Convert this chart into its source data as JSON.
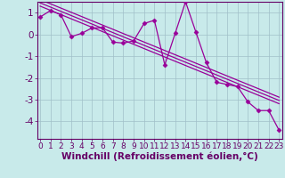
{
  "x_data": [
    0,
    1,
    2,
    3,
    4,
    5,
    6,
    7,
    8,
    9,
    10,
    11,
    12,
    13,
    14,
    15,
    16,
    17,
    18,
    19,
    20,
    21,
    22,
    23
  ],
  "y_data": [
    0.8,
    1.1,
    0.9,
    -0.1,
    0.05,
    0.3,
    0.3,
    -0.35,
    -0.4,
    -0.3,
    0.5,
    0.65,
    -1.4,
    0.05,
    1.5,
    0.1,
    -1.3,
    -2.2,
    -2.3,
    -2.4,
    -3.1,
    -3.5,
    -3.5,
    -4.4
  ],
  "line_color": "#990099",
  "marker": "D",
  "marker_size": 2.5,
  "background_color": "#c8eaea",
  "grid_color": "#a0c0c8",
  "axis_color": "#660066",
  "tick_color": "#660066",
  "label_color": "#660066",
  "xlabel": "Windchill (Refroidissement éolien,°C)",
  "ylim": [
    -4.8,
    1.5
  ],
  "xlim": [
    -0.3,
    23.3
  ],
  "yticks": [
    1,
    0,
    -1,
    -2,
    -3,
    -4
  ],
  "xticks": [
    0,
    1,
    2,
    3,
    4,
    5,
    6,
    7,
    8,
    9,
    10,
    11,
    12,
    13,
    14,
    15,
    16,
    17,
    18,
    19,
    20,
    21,
    22,
    23
  ],
  "regression_offsets": [
    -0.15,
    0.0,
    0.15
  ],
  "font_size": 6.5
}
